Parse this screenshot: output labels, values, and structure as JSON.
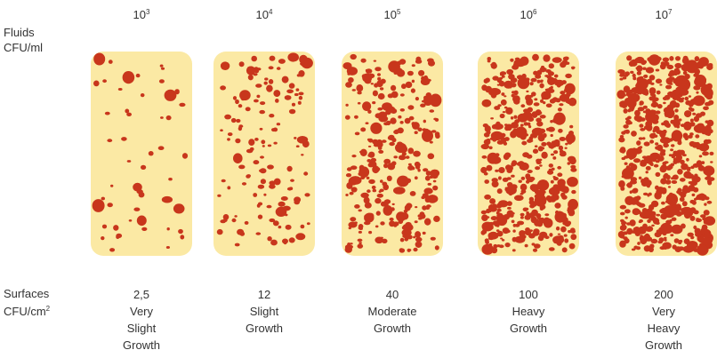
{
  "fluids": {
    "line1": "Fluids",
    "line2": "CFU/ml"
  },
  "surfaces": {
    "line1": "Surfaces",
    "line2_base": "CFU/cm",
    "line2_sup": "2"
  },
  "colors": {
    "paddle": "#fbe9a4",
    "colony": "#c8361c"
  },
  "columns": [
    {
      "exp_base": "10",
      "exp_power": "3",
      "surface_value": "2,5",
      "growth": [
        "Very",
        "Slight",
        "Growth"
      ],
      "density": 0.06
    },
    {
      "exp_base": "10",
      "exp_power": "4",
      "surface_value": "12",
      "growth": [
        "Slight",
        "Growth"
      ],
      "density": 0.2
    },
    {
      "exp_base": "10",
      "exp_power": "5",
      "surface_value": "40",
      "growth": [
        "Moderate",
        "Growth"
      ],
      "density": 0.45
    },
    {
      "exp_base": "10",
      "exp_power": "6",
      "surface_value": "100",
      "growth": [
        "Heavy",
        "Growth"
      ],
      "density": 0.75
    },
    {
      "exp_base": "10",
      "exp_power": "7",
      "surface_value": "200",
      "growth": [
        "Very",
        "Heavy",
        "Growth"
      ],
      "density": 1.0
    }
  ]
}
